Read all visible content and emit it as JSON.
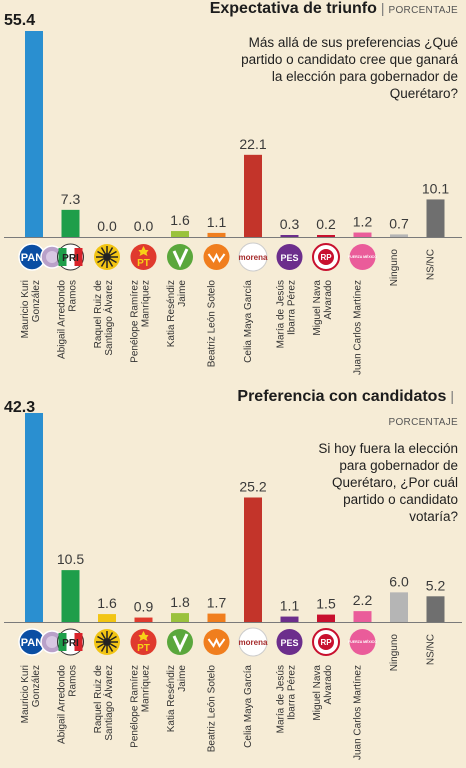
{
  "candidates": [
    {
      "name_line1": "Mauricio Kuri",
      "name_line2": "González",
      "color": "#2a8fd0",
      "logo": "PAN"
    },
    {
      "name_line1": "Abigail Arredondo",
      "name_line2": "Ramos",
      "color": "#1e9e4a",
      "logo": "PRI"
    },
    {
      "name_line1": "Raquel Ruiz de",
      "name_line2": "Santiago Álvarez",
      "color": "#f2c514",
      "logo": "PRD"
    },
    {
      "name_line1": "Penélope Ramírez",
      "name_line2": "Manríquez",
      "color": "#e03a2e",
      "logo": "PT"
    },
    {
      "name_line1": "Katia Reséndiz",
      "name_line2": "Jaime",
      "color": "#9ac23c",
      "logo": "PVEM"
    },
    {
      "name_line1": "Beatriz León Sotelo",
      "name_line2": "",
      "color": "#f07e1e",
      "logo": "MC"
    },
    {
      "name_line1": "Celia Maya García",
      "name_line2": "",
      "color": "#c3342a",
      "logo": "morena"
    },
    {
      "name_line1": "María de Jesús",
      "name_line2": "Ibarra Pérez",
      "color": "#6c2e8c",
      "logo": "PES"
    },
    {
      "name_line1": "Miguel Nava",
      "name_line2": "Alvarado",
      "color": "#c8102e",
      "logo": "RP"
    },
    {
      "name_line1": "Juan Carlos Martínez",
      "name_line2": "",
      "color": "#ea5c9a",
      "logo": "FxM"
    },
    {
      "name_line1": "Ninguno",
      "name_line2": "",
      "color": "#b5b5b5",
      "logo": ""
    },
    {
      "name_line1": "NS/NC",
      "name_line2": "",
      "color": "#6f6f6f",
      "logo": ""
    }
  ],
  "logos": {
    "PAN": "PAN",
    "PRI": "PRI",
    "PT": "PT",
    "morena": "morena",
    "PES": "PES",
    "RP": "RP",
    "FxM": "FUERZA MÉXICO"
  },
  "chart_data": [
    {
      "type": "bar",
      "title": "Expectativa de triunfo",
      "subtitle": "PORCENTAJE",
      "question": "Más allá de sus preferencias ¿Qué partido o candidato cree que ganará la elección para gobernador de Querétaro?",
      "categories": [
        "Mauricio Kuri González",
        "Abigail Arredondo Ramos",
        "Raquel Ruiz de Santiago Álvarez",
        "Penélope Ramírez Manríquez",
        "Katia Reséndiz Jaime",
        "Beatriz León Sotelo",
        "Celia Maya García",
        "María de Jesús Ibarra Pérez",
        "Miguel Nava Alvarado",
        "Juan Carlos Martínez",
        "Ninguno",
        "NS/NC"
      ],
      "values": [
        55.4,
        7.3,
        0.0,
        0.0,
        1.6,
        1.1,
        22.1,
        0.3,
        0.2,
        1.2,
        0.7,
        10.1
      ],
      "value_labels": [
        "55.4",
        "7.3",
        "0.0",
        "0.0",
        "1.6",
        "1.1",
        "22.1",
        "0.3",
        "0.2",
        "1.2",
        "0.7",
        "10.1"
      ],
      "ylim": [
        0,
        55.4
      ]
    },
    {
      "type": "bar",
      "title": "Preferencia con candidatos",
      "subtitle": "PORCENTAJE",
      "question": "Si hoy fuera la elección para gobernador de Querétaro, ¿Por cuál partido o candidato votaría?",
      "categories": [
        "Mauricio Kuri González",
        "Abigail Arredondo Ramos",
        "Raquel Ruiz de Santiago Álvarez",
        "Penélope Ramírez Manríquez",
        "Katia Reséndiz Jaime",
        "Beatriz León Sotelo",
        "Celia Maya García",
        "María de Jesús Ibarra Pérez",
        "Miguel Nava Alvarado",
        "Juan Carlos Martínez",
        "Ninguno",
        "NS/NC"
      ],
      "values": [
        42.3,
        10.5,
        1.6,
        0.9,
        1.8,
        1.7,
        25.2,
        1.1,
        1.5,
        2.2,
        6.0,
        5.2
      ],
      "value_labels": [
        "42.3",
        "10.5",
        "1.6",
        "0.9",
        "1.8",
        "1.7",
        "25.2",
        "1.1",
        "1.5",
        "2.2",
        "6.0",
        "5.2"
      ],
      "ylim": [
        0,
        42.3
      ]
    }
  ]
}
